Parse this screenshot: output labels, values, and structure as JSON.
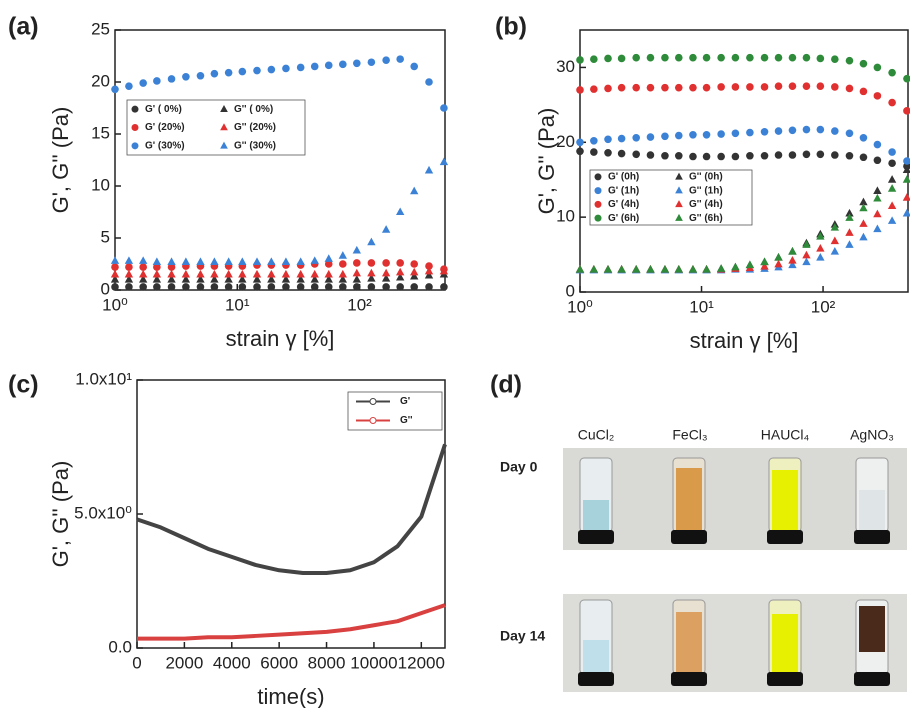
{
  "chart_data": [
    {
      "type": "scatter",
      "panel_label": "(a)",
      "xlabel": "strain γ [%]",
      "ylabel": "G', G'' (Pa)",
      "xscale": "log",
      "x": [
        1,
        1.3,
        1.7,
        2.2,
        2.9,
        3.8,
        5,
        6.5,
        8.5,
        11,
        14.5,
        19,
        25,
        33,
        43,
        56,
        73,
        95,
        125,
        165,
        215,
        280,
        370,
        490
      ],
      "xlim": [
        1,
        500
      ],
      "xticks": [
        {
          "value": 1,
          "label": "10⁰"
        },
        {
          "value": 10,
          "label": "10¹"
        },
        {
          "value": 100,
          "label": "10²"
        }
      ],
      "ylim": [
        0,
        25
      ],
      "yticks": [
        0,
        5,
        10,
        15,
        20,
        25
      ],
      "series": [
        {
          "name": "G' ( 0%)",
          "color": "#333333",
          "marker": "circle",
          "values": [
            0.3,
            0.3,
            0.3,
            0.3,
            0.3,
            0.3,
            0.3,
            0.3,
            0.3,
            0.3,
            0.3,
            0.3,
            0.3,
            0.3,
            0.3,
            0.3,
            0.3,
            0.3,
            0.3,
            0.3,
            0.3,
            0.3,
            0.3,
            0.3
          ]
        },
        {
          "name": "G' (20%)",
          "color": "#e03030",
          "marker": "circle",
          "values": [
            2.2,
            2.2,
            2.2,
            2.2,
            2.2,
            2.3,
            2.3,
            2.3,
            2.3,
            2.3,
            2.4,
            2.4,
            2.4,
            2.4,
            2.5,
            2.5,
            2.5,
            2.6,
            2.6,
            2.6,
            2.6,
            2.5,
            2.3,
            2.0
          ]
        },
        {
          "name": "G' (30%)",
          "color": "#3b82d6",
          "marker": "circle",
          "values": [
            19.3,
            19.6,
            19.9,
            20.1,
            20.3,
            20.5,
            20.6,
            20.8,
            20.9,
            21,
            21.1,
            21.2,
            21.3,
            21.4,
            21.5,
            21.6,
            21.7,
            21.8,
            21.9,
            22.1,
            22.2,
            21.5,
            20,
            17.5
          ]
        },
        {
          "name": "G'' ( 0%)",
          "color": "#333333",
          "marker": "triangle",
          "values": [
            1,
            1,
            1,
            1,
            1,
            1,
            1,
            1,
            1,
            1,
            1,
            1,
            1,
            1,
            1,
            1,
            1,
            1,
            1.1,
            1.1,
            1.2,
            1.3,
            1.4,
            1.5
          ]
        },
        {
          "name": "G'' (20%)",
          "color": "#e03030",
          "marker": "triangle",
          "values": [
            1.5,
            1.5,
            1.5,
            1.5,
            1.5,
            1.5,
            1.5,
            1.5,
            1.5,
            1.5,
            1.5,
            1.5,
            1.5,
            1.5,
            1.5,
            1.5,
            1.5,
            1.6,
            1.6,
            1.6,
            1.7,
            1.7,
            1.8,
            1.8
          ]
        },
        {
          "name": "G'' (30%)",
          "color": "#3b82d6",
          "marker": "triangle",
          "values": [
            2.8,
            2.8,
            2.8,
            2.7,
            2.7,
            2.7,
            2.7,
            2.7,
            2.7,
            2.7,
            2.7,
            2.7,
            2.7,
            2.7,
            2.8,
            3.0,
            3.3,
            3.8,
            4.6,
            5.8,
            7.5,
            9.5,
            11.5,
            12.3
          ]
        }
      ]
    },
    {
      "type": "scatter",
      "panel_label": "(b)",
      "xlabel": "strain γ [%]",
      "ylabel": "G', G'' (Pa)",
      "xscale": "log",
      "x": [
        1,
        1.3,
        1.7,
        2.2,
        2.9,
        3.8,
        5,
        6.5,
        8.5,
        11,
        14.5,
        19,
        25,
        33,
        43,
        56,
        73,
        95,
        125,
        165,
        215,
        280,
        370,
        490
      ],
      "xlim": [
        1,
        500
      ],
      "xticks": [
        {
          "value": 1,
          "label": "10⁰"
        },
        {
          "value": 10,
          "label": "10¹"
        },
        {
          "value": 100,
          "label": "10²"
        }
      ],
      "ylim": [
        0,
        35
      ],
      "yticks": [
        0,
        10,
        20,
        30
      ],
      "series": [
        {
          "name": "G' (0h)",
          "color": "#333333",
          "marker": "circle",
          "values": [
            18.8,
            18.7,
            18.6,
            18.5,
            18.4,
            18.3,
            18.2,
            18.2,
            18.1,
            18.1,
            18.1,
            18.1,
            18.2,
            18.2,
            18.3,
            18.3,
            18.4,
            18.4,
            18.3,
            18.2,
            18.0,
            17.6,
            17.2,
            16.8
          ]
        },
        {
          "name": "G' (1h)",
          "color": "#3b82d6",
          "marker": "circle",
          "values": [
            20,
            20.2,
            20.4,
            20.5,
            20.6,
            20.7,
            20.8,
            20.9,
            21,
            21,
            21.1,
            21.2,
            21.3,
            21.4,
            21.5,
            21.6,
            21.7,
            21.7,
            21.5,
            21.2,
            20.6,
            19.7,
            18.7,
            17.5
          ]
        },
        {
          "name": "G' (4h)",
          "color": "#e03030",
          "marker": "circle",
          "values": [
            27,
            27.1,
            27.2,
            27.3,
            27.3,
            27.3,
            27.3,
            27.3,
            27.3,
            27.3,
            27.4,
            27.4,
            27.4,
            27.4,
            27.5,
            27.5,
            27.5,
            27.5,
            27.4,
            27.2,
            26.8,
            26.2,
            25.3,
            24.2
          ]
        },
        {
          "name": "G' (6h)",
          "color": "#2e8b3a",
          "marker": "circle",
          "values": [
            31,
            31.1,
            31.2,
            31.2,
            31.3,
            31.3,
            31.3,
            31.3,
            31.3,
            31.3,
            31.3,
            31.3,
            31.3,
            31.3,
            31.3,
            31.3,
            31.3,
            31.2,
            31.1,
            30.9,
            30.5,
            30,
            29.3,
            28.5
          ]
        },
        {
          "name": "G'' (0h)",
          "color": "#333333",
          "marker": "triangle",
          "values": [
            3,
            3,
            3,
            3,
            3,
            3,
            3,
            3,
            3,
            3,
            3.1,
            3.3,
            3.6,
            4,
            4.6,
            5.4,
            6.5,
            7.7,
            9,
            10.5,
            12,
            13.5,
            15,
            16.3
          ]
        },
        {
          "name": "G'' (1h)",
          "color": "#3b82d6",
          "marker": "triangle",
          "values": [
            2.9,
            2.9,
            2.9,
            2.9,
            2.9,
            2.9,
            2.9,
            2.9,
            2.9,
            2.9,
            2.9,
            3,
            3,
            3.1,
            3.3,
            3.6,
            4,
            4.6,
            5.4,
            6.3,
            7.3,
            8.4,
            9.5,
            10.5
          ]
        },
        {
          "name": "G'' (4h)",
          "color": "#e03030",
          "marker": "triangle",
          "values": [
            3,
            3,
            3,
            3,
            3,
            3,
            3,
            3,
            3,
            3,
            3,
            3.1,
            3.2,
            3.4,
            3.7,
            4.2,
            4.9,
            5.8,
            6.8,
            7.9,
            9.1,
            10.4,
            11.5,
            12.6
          ]
        },
        {
          "name": "G'' (6h)",
          "color": "#2e8b3a",
          "marker": "triangle",
          "values": [
            3,
            3,
            3,
            3,
            3,
            3,
            3,
            3,
            3,
            3,
            3.1,
            3.3,
            3.6,
            4,
            4.6,
            5.4,
            6.3,
            7.4,
            8.6,
            9.9,
            11.2,
            12.5,
            13.8,
            15
          ]
        }
      ]
    },
    {
      "type": "line",
      "panel_label": "(c)",
      "xlabel": "time(s)",
      "ylabel": "G', G'' (Pa)",
      "x": [
        0,
        1000,
        2000,
        3000,
        4000,
        5000,
        6000,
        7000,
        8000,
        9000,
        10000,
        11000,
        12000,
        13000
      ],
      "xlim": [
        0,
        13000
      ],
      "xticks": [
        0,
        2000,
        4000,
        6000,
        8000,
        10000,
        12000
      ],
      "ylim": [
        0,
        10
      ],
      "yticks": [
        {
          "value": 0,
          "label": "0.0"
        },
        {
          "value": 5,
          "label": "5.0x10⁰"
        },
        {
          "value": 10,
          "label": "1.0x10¹"
        }
      ],
      "series": [
        {
          "name": "G'",
          "color": "#444444",
          "values": [
            4.8,
            4.5,
            4.1,
            3.7,
            3.4,
            3.1,
            2.9,
            2.8,
            2.8,
            2.9,
            3.2,
            3.8,
            4.9,
            7.6
          ]
        },
        {
          "name": "G''",
          "color": "#d94040",
          "values": [
            0.35,
            0.35,
            0.35,
            0.4,
            0.4,
            0.45,
            0.5,
            0.55,
            0.6,
            0.7,
            0.85,
            1.0,
            1.3,
            1.6
          ]
        }
      ]
    }
  ],
  "photo_panel": {
    "label": "(d)",
    "columns": [
      "CuCl₂",
      "FeCl₃",
      "HAUCl₄",
      "AgNO₃"
    ],
    "rows": [
      "Day 0",
      "Day 14"
    ]
  }
}
